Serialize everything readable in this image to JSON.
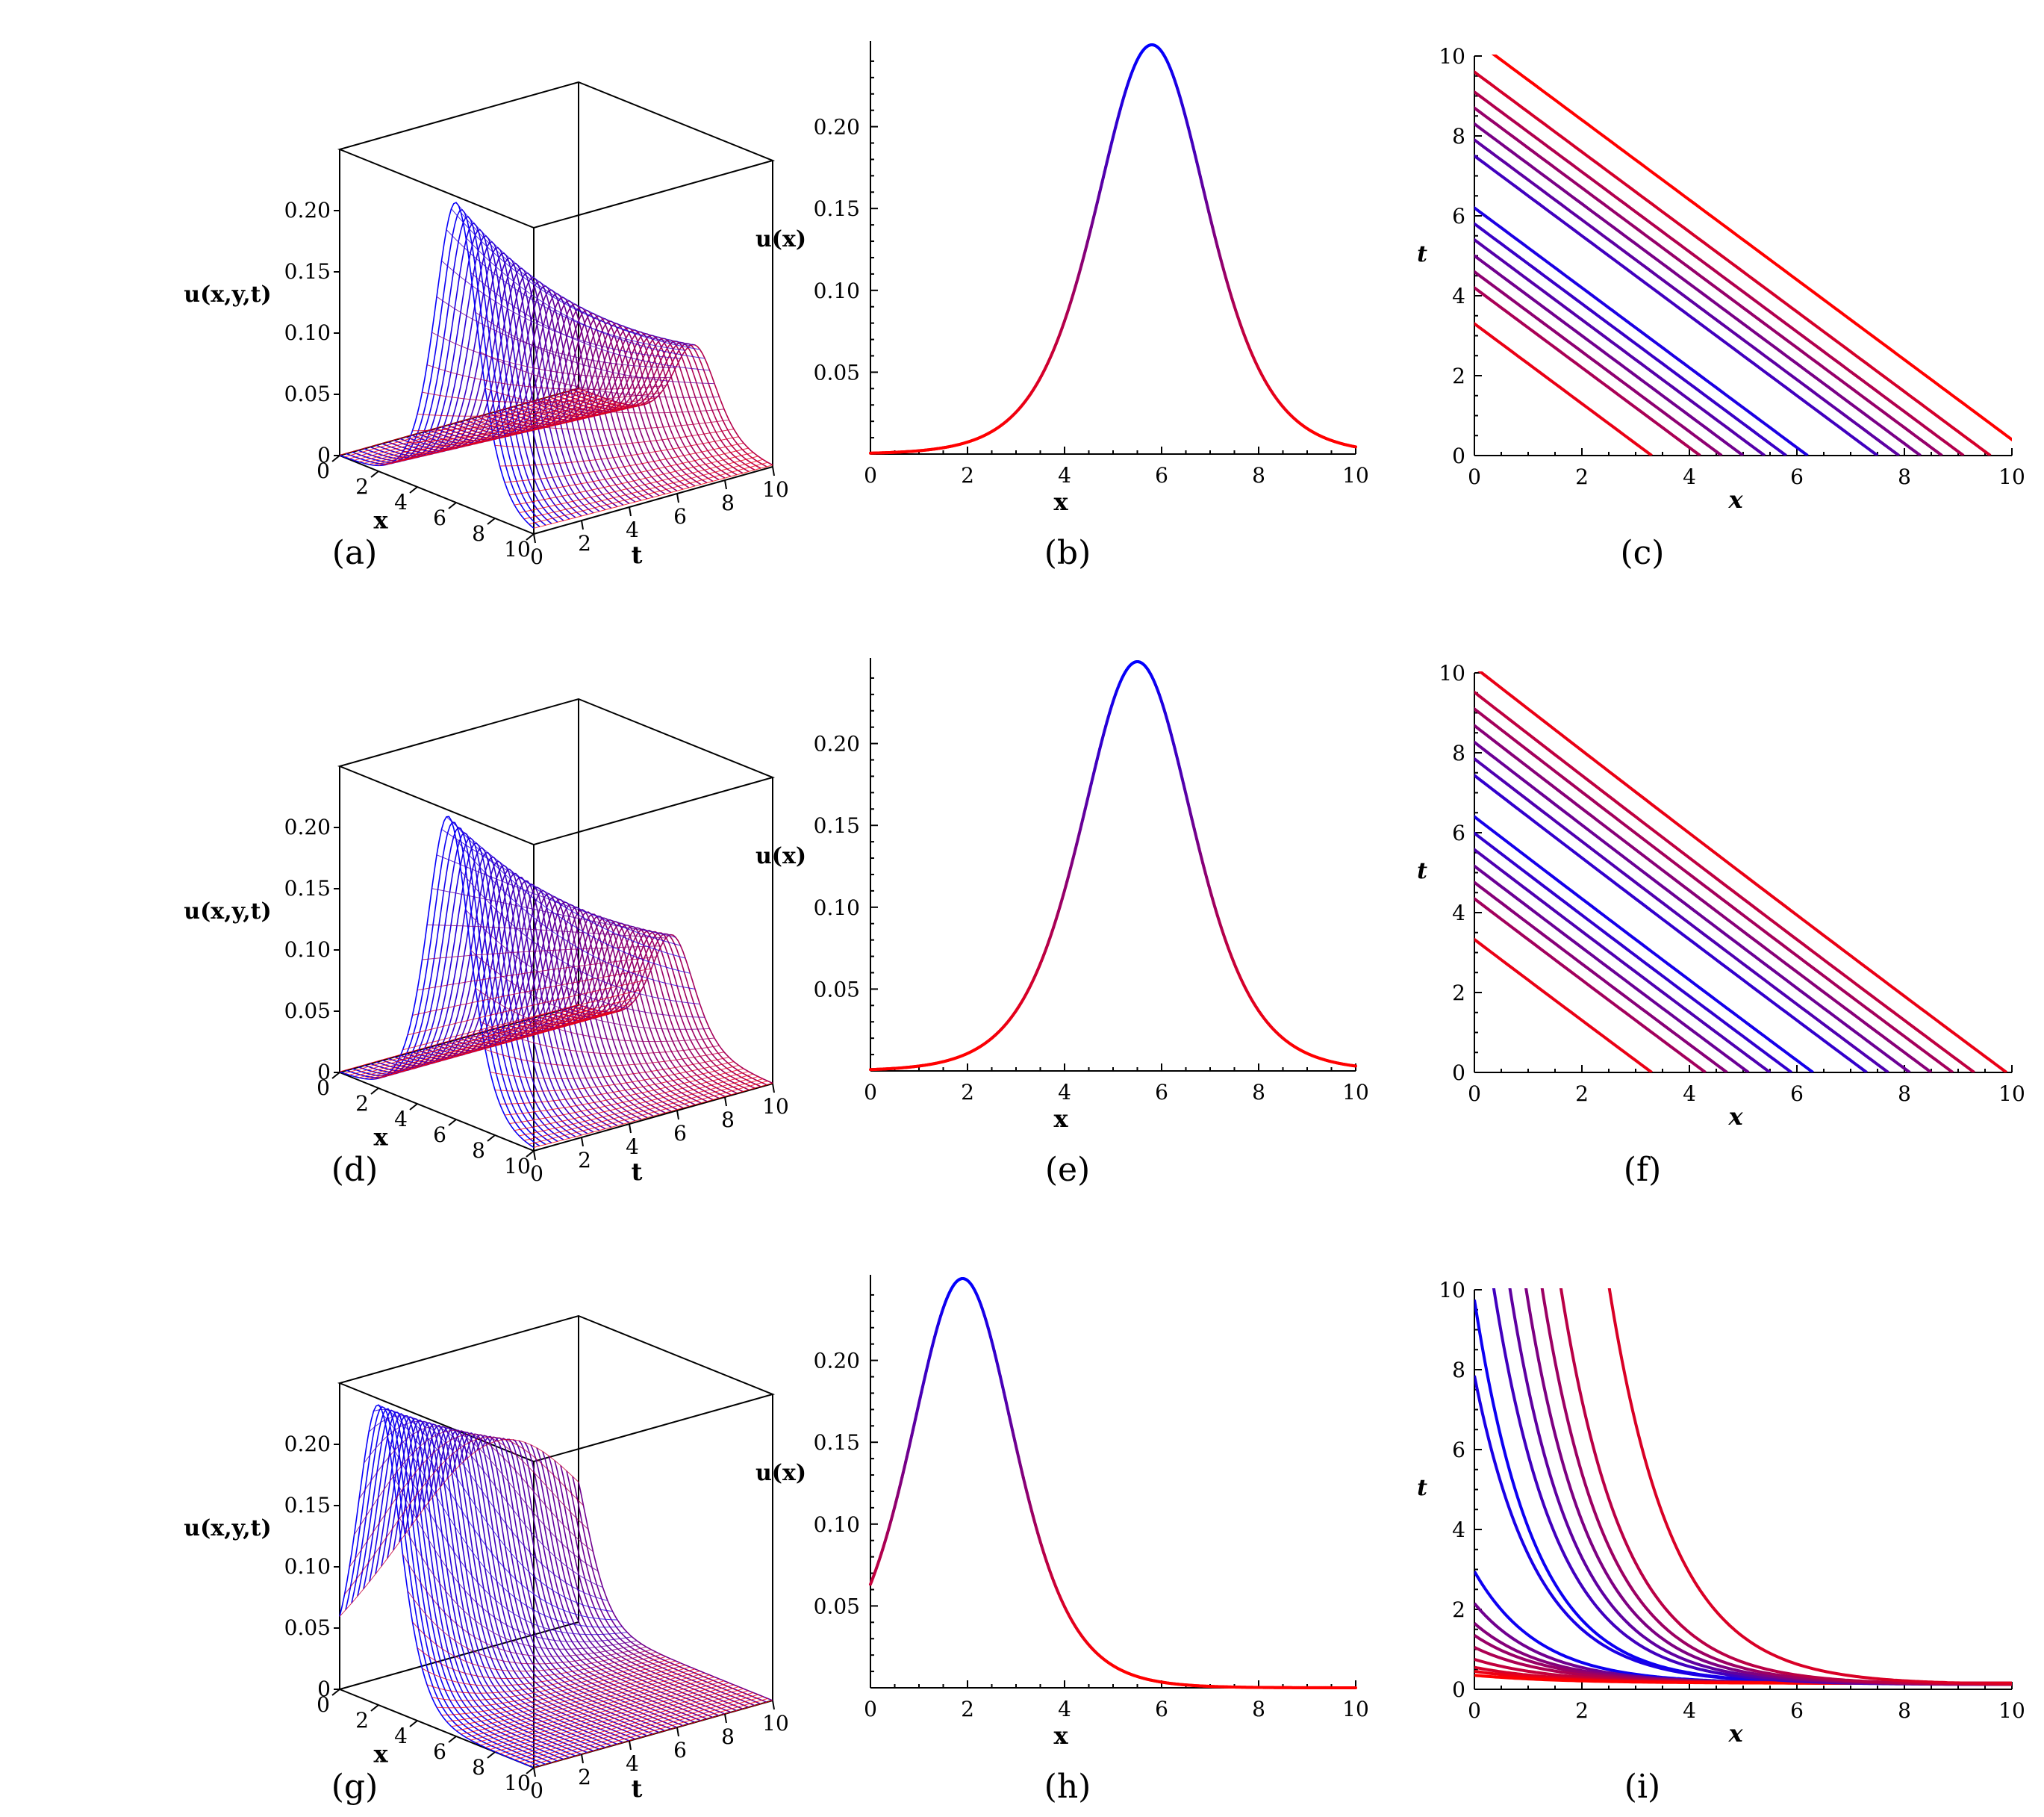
{
  "colors": {
    "high": "#0000ff",
    "low": "#ff0000",
    "axis": "#000000",
    "box": "#000000"
  },
  "chart_data": [
    {
      "id": "a",
      "type": "surface3d",
      "caption": "(a)",
      "zlabel": "u(x,y,t)",
      "xlabel": "x",
      "ylabel": "t",
      "xticks": [
        "0",
        "2",
        "4",
        "6",
        "8",
        "10"
      ],
      "yticks": [
        "0",
        "2",
        "4",
        "6",
        "8",
        "10"
      ],
      "zticks": [
        "0",
        "0.05",
        "0.10",
        "0.15",
        "0.20"
      ],
      "zlim": [
        0,
        0.25
      ],
      "ridge_x0": 6.0,
      "speed": 0.0
    },
    {
      "id": "b",
      "type": "line",
      "caption": "(b)",
      "xlabel": "x",
      "ylabel": "u(x)",
      "xlim": [
        0,
        10
      ],
      "ylim": [
        0,
        0.25
      ],
      "xticks": [
        "0",
        "2",
        "4",
        "6",
        "8",
        "10"
      ],
      "yticks": [
        "0.05",
        "0.10",
        "0.15",
        "0.20"
      ],
      "peak_x": 5.8,
      "peak_u": 0.25
    },
    {
      "id": "c",
      "type": "contour",
      "caption": "(c)",
      "xlabel": "x",
      "ylabel": "t",
      "xlim": [
        0,
        10
      ],
      "ylim": [
        0,
        10
      ],
      "xticks": [
        "0",
        "2",
        "4",
        "6",
        "8",
        "10"
      ],
      "yticks": [
        "0",
        "2",
        "4",
        "6",
        "8",
        "10"
      ],
      "contour_intercepts": [
        3.3,
        4.2,
        4.6,
        5.0,
        5.4,
        5.8,
        6.2,
        7.5,
        7.9,
        8.3,
        8.7,
        9.1,
        9.6,
        10.4
      ],
      "slope": -1.0,
      "curvature": 0.0
    },
    {
      "id": "d",
      "type": "surface3d",
      "caption": "(d)",
      "zlabel": "u(x,y,t)",
      "xlabel": "x",
      "ylabel": "t",
      "xticks": [
        "0",
        "2",
        "4",
        "6",
        "8",
        "10"
      ],
      "yticks": [
        "0",
        "2",
        "4",
        "6",
        "8",
        "10"
      ],
      "zticks": [
        "0",
        "0.05",
        "0.10",
        "0.15",
        "0.20"
      ],
      "zlim": [
        0,
        0.25
      ],
      "ridge_x0": 5.6,
      "speed": 0.25
    },
    {
      "id": "e",
      "type": "line",
      "caption": "(e)",
      "xlabel": "x",
      "ylabel": "u(x)",
      "xlim": [
        0,
        10
      ],
      "ylim": [
        0,
        0.25
      ],
      "xticks": [
        "0",
        "2",
        "4",
        "6",
        "8",
        "10"
      ],
      "yticks": [
        "0.05",
        "0.10",
        "0.15",
        "0.20"
      ],
      "peak_x": 5.5,
      "peak_u": 0.25
    },
    {
      "id": "f",
      "type": "contour",
      "caption": "(f)",
      "xlabel": "x",
      "ylabel": "t",
      "xlim": [
        0,
        10
      ],
      "ylim": [
        0,
        10
      ],
      "xticks": [
        "0",
        "2",
        "4",
        "6",
        "8",
        "10"
      ],
      "yticks": [
        "0",
        "2",
        "4",
        "6",
        "8",
        "10"
      ],
      "contour_intercepts": [
        3.3,
        4.3,
        4.7,
        5.1,
        5.5,
        5.9,
        6.3,
        7.3,
        7.7,
        8.1,
        8.5,
        8.9,
        9.3,
        9.9
      ],
      "slope": -1.0,
      "curvature": 0.25
    },
    {
      "id": "g",
      "type": "surface3d",
      "caption": "(g)",
      "zlabel": "u(x,y,t)",
      "xlabel": "x",
      "ylabel": "t",
      "xticks": [
        "0",
        "2",
        "4",
        "6",
        "8",
        "10"
      ],
      "yticks": [
        "0",
        "2",
        "4",
        "6",
        "8",
        "10"
      ],
      "zticks": [
        "0",
        "0.05",
        "0.10",
        "0.15",
        "0.20"
      ],
      "zlim": [
        0,
        0.25
      ],
      "ridge_x0": 2.0,
      "speed": 0.9
    },
    {
      "id": "h",
      "type": "line",
      "caption": "(h)",
      "xlabel": "x",
      "ylabel": "u(x)",
      "xlim": [
        0,
        10
      ],
      "ylim": [
        0,
        0.25
      ],
      "xticks": [
        "0",
        "2",
        "4",
        "6",
        "8",
        "10"
      ],
      "yticks": [
        "0.05",
        "0.10",
        "0.15",
        "0.20"
      ],
      "peak_x": 1.9,
      "peak_u": 0.25
    },
    {
      "id": "i",
      "type": "contour",
      "caption": "(i)",
      "xlabel": "x",
      "ylabel": "t",
      "xlim": [
        0,
        10
      ],
      "ylim": [
        0,
        10
      ],
      "xticks": [
        "0",
        "2",
        "4",
        "6",
        "8",
        "10"
      ],
      "yticks": [
        "0",
        "2",
        "4",
        "6",
        "8",
        "10"
      ],
      "contour_tops_x": [
        0.0,
        0.35,
        0.65,
        0.95,
        1.25,
        1.6,
        2.5
      ],
      "contour_left_t": [
        9.6,
        7.7,
        2.8,
        2.0,
        1.5,
        1.2,
        0.9,
        0.6,
        0.4,
        0.3,
        0.2
      ],
      "slope": 0.0,
      "curvature": 1.0
    }
  ]
}
